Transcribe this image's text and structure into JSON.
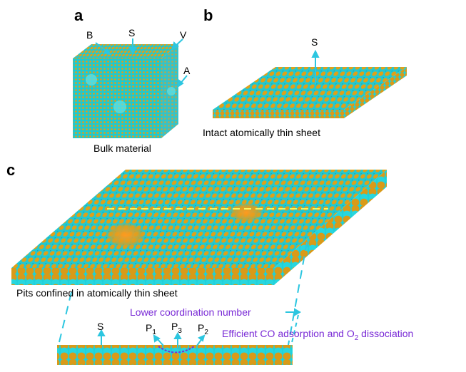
{
  "panels": {
    "a": {
      "letter": "a",
      "caption": "Bulk material",
      "labels": {
        "B": "B",
        "S": "S",
        "V": "V",
        "A": "A"
      }
    },
    "b": {
      "letter": "b",
      "caption": "Intact atomically thin sheet",
      "labels": {
        "S": "S"
      }
    },
    "c": {
      "letter": "c",
      "caption": "Pits confined in atomically thin sheet",
      "labels": {
        "S": "S",
        "P1": "P",
        "P1_sub": "1",
        "P3": "P",
        "P3_sub": "3",
        "P2": "P",
        "P2_sub": "2"
      },
      "annot_coordination": "Lower coordination number",
      "annot_adsorption_pre": "Efficient CO adsorption and O",
      "annot_adsorption_sub": "2",
      "annot_adsorption_post": " dissociation"
    }
  },
  "colors": {
    "atom_cyan": "#1fd0d8",
    "atom_gold": "#e0a018",
    "arrow": "#2cc6e0",
    "annotation": "#7a2bd6",
    "pit": "#ff8c1a"
  }
}
